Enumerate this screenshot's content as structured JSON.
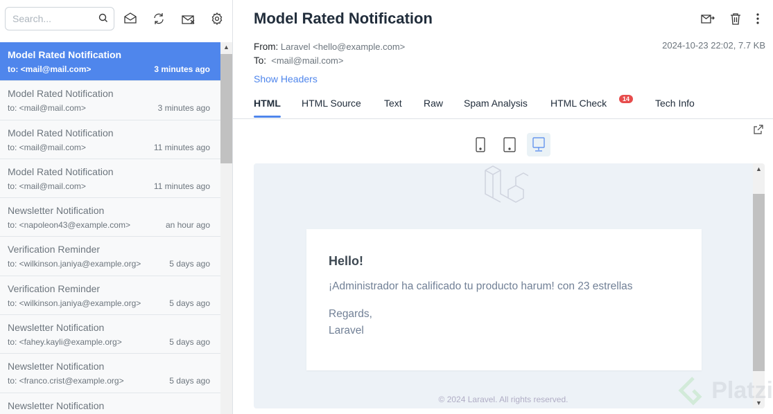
{
  "sidebar": {
    "search_placeholder": "Search...",
    "items": [
      {
        "subject": "Model Rated Notification",
        "to": "to: <mail@mail.com>",
        "time": "3 minutes ago",
        "active": true
      },
      {
        "subject": "Model Rated Notification",
        "to": "to: <mail@mail.com>",
        "time": "3 minutes ago"
      },
      {
        "subject": "Model Rated Notification",
        "to": "to: <mail@mail.com>",
        "time": "11 minutes ago"
      },
      {
        "subject": "Model Rated Notification",
        "to": "to: <mail@mail.com>",
        "time": "11 minutes ago"
      },
      {
        "subject": "Newsletter Notification",
        "to": "to: <napoleon43@example.com>",
        "time": "an hour ago"
      },
      {
        "subject": "Verification Reminder",
        "to": "to: <wilkinson.janiya@example.org>",
        "time": "5 days ago"
      },
      {
        "subject": "Verification Reminder",
        "to": "to: <wilkinson.janiya@example.org>",
        "time": "5 days ago"
      },
      {
        "subject": "Newsletter Notification",
        "to": "to: <fahey.kayli@example.org>",
        "time": "5 days ago"
      },
      {
        "subject": "Newsletter Notification",
        "to": "to: <franco.crist@example.org>",
        "time": "5 days ago"
      },
      {
        "subject": "Newsletter Notification",
        "to": "",
        "time": ""
      }
    ]
  },
  "message": {
    "title": "Model Rated Notification",
    "from_label": "From:",
    "from": "Laravel <hello@example.com>",
    "to_label": "To:",
    "to": "<mail@mail.com>",
    "date_size": "2024-10-23 22:02, 7.7 KB",
    "show_headers": "Show Headers",
    "tabs": [
      "HTML",
      "HTML Source",
      "Text",
      "Raw",
      "Spam Analysis",
      "HTML Check",
      "Tech Info"
    ],
    "html_check_badge": "14"
  },
  "email": {
    "greeting": "Hello!",
    "body": "¡Administrador ha calificado tu producto harum! con 23 estrellas",
    "regards": "Regards,",
    "signature": "Laravel",
    "footer": "© 2024 Laravel. All rights reserved."
  },
  "watermark": "Platzi",
  "colors": {
    "accent": "#4f86ec",
    "badge": "#e74c4c"
  }
}
